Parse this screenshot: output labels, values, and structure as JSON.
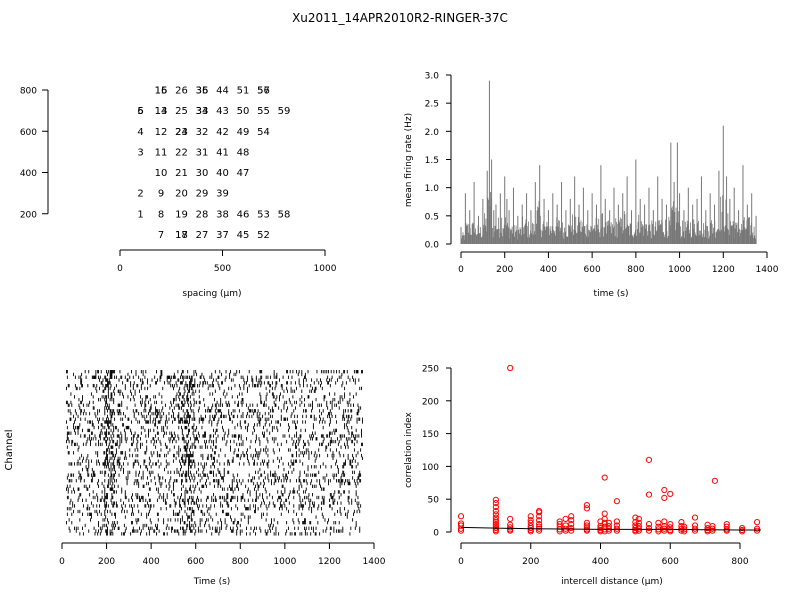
{
  "title": "Xu2011_14APR2010R2-RINGER-37C",
  "chart_data": [
    {
      "type": "scatter",
      "xlabel": "spacing (µm)",
      "ylabel": "",
      "xlim": [
        0,
        1000
      ],
      "ylim": [
        0,
        800
      ],
      "x_ticks": [
        "0",
        "500",
        "1000"
      ],
      "y_ticks": [
        "200",
        "400",
        "600",
        "800"
      ],
      "points": [
        {
          "x": 100,
          "y": 200,
          "label": "1"
        },
        {
          "x": 100,
          "y": 300,
          "label": "2"
        },
        {
          "x": 100,
          "y": 500,
          "label": "3"
        },
        {
          "x": 100,
          "y": 600,
          "label": "4"
        },
        {
          "x": 100,
          "y": 700,
          "label": "5"
        },
        {
          "x": 100,
          "y": 700,
          "label": "6"
        },
        {
          "x": 200,
          "y": 100,
          "label": "7"
        },
        {
          "x": 200,
          "y": 200,
          "label": "8"
        },
        {
          "x": 200,
          "y": 300,
          "label": "9"
        },
        {
          "x": 200,
          "y": 400,
          "label": "10"
        },
        {
          "x": 200,
          "y": 500,
          "label": "11"
        },
        {
          "x": 200,
          "y": 600,
          "label": "12"
        },
        {
          "x": 200,
          "y": 700,
          "label": "13"
        },
        {
          "x": 200,
          "y": 700,
          "label": "14"
        },
        {
          "x": 200,
          "y": 800,
          "label": "15"
        },
        {
          "x": 200,
          "y": 800,
          "label": "16"
        },
        {
          "x": 300,
          "y": 100,
          "label": "17"
        },
        {
          "x": 300,
          "y": 100,
          "label": "18"
        },
        {
          "x": 300,
          "y": 200,
          "label": "19"
        },
        {
          "x": 300,
          "y": 300,
          "label": "20"
        },
        {
          "x": 300,
          "y": 400,
          "label": "21"
        },
        {
          "x": 300,
          "y": 500,
          "label": "22"
        },
        {
          "x": 300,
          "y": 600,
          "label": "23"
        },
        {
          "x": 300,
          "y": 600,
          "label": "24"
        },
        {
          "x": 300,
          "y": 700,
          "label": "25"
        },
        {
          "x": 300,
          "y": 800,
          "label": "26"
        },
        {
          "x": 400,
          "y": 100,
          "label": "27"
        },
        {
          "x": 400,
          "y": 200,
          "label": "28"
        },
        {
          "x": 400,
          "y": 300,
          "label": "29"
        },
        {
          "x": 400,
          "y": 400,
          "label": "30"
        },
        {
          "x": 400,
          "y": 500,
          "label": "31"
        },
        {
          "x": 400,
          "y": 600,
          "label": "32"
        },
        {
          "x": 400,
          "y": 700,
          "label": "33"
        },
        {
          "x": 400,
          "y": 700,
          "label": "34"
        },
        {
          "x": 400,
          "y": 800,
          "label": "35"
        },
        {
          "x": 400,
          "y": 800,
          "label": "36"
        },
        {
          "x": 500,
          "y": 100,
          "label": "37"
        },
        {
          "x": 500,
          "y": 200,
          "label": "38"
        },
        {
          "x": 500,
          "y": 300,
          "label": "39"
        },
        {
          "x": 500,
          "y": 400,
          "label": "40"
        },
        {
          "x": 500,
          "y": 500,
          "label": "41"
        },
        {
          "x": 500,
          "y": 600,
          "label": "42"
        },
        {
          "x": 500,
          "y": 700,
          "label": "43"
        },
        {
          "x": 500,
          "y": 800,
          "label": "44"
        },
        {
          "x": 600,
          "y": 100,
          "label": "45"
        },
        {
          "x": 600,
          "y": 200,
          "label": "46"
        },
        {
          "x": 600,
          "y": 400,
          "label": "47"
        },
        {
          "x": 600,
          "y": 500,
          "label": "48"
        },
        {
          "x": 600,
          "y": 600,
          "label": "49"
        },
        {
          "x": 600,
          "y": 700,
          "label": "50"
        },
        {
          "x": 600,
          "y": 800,
          "label": "51"
        },
        {
          "x": 700,
          "y": 100,
          "label": "52"
        },
        {
          "x": 700,
          "y": 200,
          "label": "53"
        },
        {
          "x": 700,
          "y": 600,
          "label": "54"
        },
        {
          "x": 700,
          "y": 700,
          "label": "55"
        },
        {
          "x": 700,
          "y": 800,
          "label": "56"
        },
        {
          "x": 700,
          "y": 800,
          "label": "57"
        },
        {
          "x": 800,
          "y": 200,
          "label": "58"
        },
        {
          "x": 800,
          "y": 700,
          "label": "59"
        }
      ]
    },
    {
      "type": "bar",
      "xlabel": "time (s)",
      "ylabel": "mean firing rate (Hz)",
      "xlim": [
        0,
        1400
      ],
      "ylim": [
        0,
        3.0
      ],
      "x_ticks": [
        "0",
        "200",
        "400",
        "600",
        "800",
        "1000",
        "1200",
        "1400"
      ],
      "y_ticks": [
        "0.0",
        "0.5",
        "1.0",
        "1.5",
        "2.0",
        "2.5",
        "3.0"
      ],
      "color": "#777777",
      "x": [
        0,
        20,
        40,
        60,
        80,
        100,
        120,
        130,
        140,
        150,
        160,
        180,
        200,
        210,
        220,
        240,
        260,
        280,
        300,
        320,
        340,
        360,
        380,
        400,
        420,
        440,
        460,
        480,
        500,
        520,
        540,
        560,
        580,
        600,
        620,
        640,
        660,
        680,
        700,
        720,
        740,
        760,
        780,
        800,
        820,
        840,
        860,
        880,
        900,
        920,
        940,
        960,
        975,
        990,
        1000,
        1020,
        1040,
        1060,
        1080,
        1100,
        1120,
        1140,
        1160,
        1180,
        1200,
        1215,
        1230,
        1250,
        1270,
        1290,
        1310,
        1330,
        1350
      ],
      "values": [
        0.3,
        0.9,
        0.6,
        1.1,
        0.5,
        0.8,
        1.3,
        2.9,
        1.5,
        0.6,
        0.7,
        0.9,
        1.2,
        0.8,
        0.6,
        1.0,
        0.5,
        0.7,
        0.9,
        0.6,
        1.1,
        1.4,
        0.8,
        0.6,
        0.9,
        0.7,
        1.1,
        0.6,
        0.8,
        1.2,
        0.7,
        1.0,
        0.6,
        0.9,
        0.7,
        1.4,
        0.8,
        0.6,
        1.0,
        0.7,
        0.9,
        1.2,
        0.6,
        1.5,
        0.8,
        0.7,
        1.0,
        0.6,
        1.2,
        0.8,
        0.7,
        1.8,
        1.1,
        1.8,
        0.9,
        0.6,
        1.0,
        0.7,
        0.8,
        1.2,
        0.6,
        0.9,
        0.7,
        1.3,
        2.1,
        1.2,
        0.8,
        1.0,
        0.6,
        1.4,
        0.7,
        0.9,
        0.5
      ]
    },
    {
      "type": "raster",
      "xlabel": "Time (s)",
      "ylabel": "Channel",
      "xlim": [
        0,
        1400
      ],
      "x_ticks": [
        "0",
        "200",
        "400",
        "600",
        "800",
        "1000",
        "1200",
        "1400"
      ],
      "channels": 59,
      "duration": 1350
    },
    {
      "type": "scatter",
      "xlabel": "intercell distance (µm)",
      "ylabel": "correlation index",
      "xlim": [
        0,
        860
      ],
      "ylim": [
        0,
        250
      ],
      "x_ticks": [
        "0",
        "200",
        "400",
        "600",
        "800"
      ],
      "y_ticks": [
        "0",
        "50",
        "100",
        "150",
        "200",
        "250"
      ],
      "point_color": "#ff0000",
      "line_color": "#000000",
      "points": [
        {
          "x": 0,
          "y": 2
        },
        {
          "x": 0,
          "y": 5
        },
        {
          "x": 0,
          "y": 10
        },
        {
          "x": 0,
          "y": 13
        },
        {
          "x": 0,
          "y": 24
        },
        {
          "x": 100,
          "y": 1
        },
        {
          "x": 100,
          "y": 3
        },
        {
          "x": 100,
          "y": 6
        },
        {
          "x": 100,
          "y": 9
        },
        {
          "x": 100,
          "y": 12
        },
        {
          "x": 100,
          "y": 15
        },
        {
          "x": 100,
          "y": 18
        },
        {
          "x": 100,
          "y": 22
        },
        {
          "x": 100,
          "y": 27
        },
        {
          "x": 100,
          "y": 32
        },
        {
          "x": 100,
          "y": 38
        },
        {
          "x": 100,
          "y": 44
        },
        {
          "x": 100,
          "y": 49
        },
        {
          "x": 141,
          "y": 2
        },
        {
          "x": 141,
          "y": 4
        },
        {
          "x": 141,
          "y": 7
        },
        {
          "x": 141,
          "y": 11
        },
        {
          "x": 141,
          "y": 20
        },
        {
          "x": 141,
          "y": 250
        },
        {
          "x": 200,
          "y": 1
        },
        {
          "x": 200,
          "y": 3
        },
        {
          "x": 200,
          "y": 6
        },
        {
          "x": 200,
          "y": 9
        },
        {
          "x": 200,
          "y": 14
        },
        {
          "x": 200,
          "y": 18
        },
        {
          "x": 200,
          "y": 24
        },
        {
          "x": 224,
          "y": 2
        },
        {
          "x": 224,
          "y": 5
        },
        {
          "x": 224,
          "y": 8
        },
        {
          "x": 224,
          "y": 12
        },
        {
          "x": 224,
          "y": 18
        },
        {
          "x": 224,
          "y": 24
        },
        {
          "x": 224,
          "y": 30
        },
        {
          "x": 224,
          "y": 32
        },
        {
          "x": 283,
          "y": 1
        },
        {
          "x": 283,
          "y": 4
        },
        {
          "x": 283,
          "y": 8
        },
        {
          "x": 283,
          "y": 12
        },
        {
          "x": 283,
          "y": 16
        },
        {
          "x": 300,
          "y": 2
        },
        {
          "x": 300,
          "y": 5
        },
        {
          "x": 300,
          "y": 10
        },
        {
          "x": 300,
          "y": 20
        },
        {
          "x": 316,
          "y": 2
        },
        {
          "x": 316,
          "y": 6
        },
        {
          "x": 316,
          "y": 12
        },
        {
          "x": 316,
          "y": 18
        },
        {
          "x": 316,
          "y": 24
        },
        {
          "x": 361,
          "y": 2
        },
        {
          "x": 361,
          "y": 4
        },
        {
          "x": 361,
          "y": 7
        },
        {
          "x": 361,
          "y": 10
        },
        {
          "x": 361,
          "y": 14
        },
        {
          "x": 361,
          "y": 36
        },
        {
          "x": 361,
          "y": 41
        },
        {
          "x": 400,
          "y": 1
        },
        {
          "x": 400,
          "y": 3
        },
        {
          "x": 400,
          "y": 6
        },
        {
          "x": 400,
          "y": 9
        },
        {
          "x": 400,
          "y": 16
        },
        {
          "x": 412,
          "y": 1
        },
        {
          "x": 412,
          "y": 4
        },
        {
          "x": 412,
          "y": 8
        },
        {
          "x": 412,
          "y": 14
        },
        {
          "x": 412,
          "y": 20
        },
        {
          "x": 412,
          "y": 28
        },
        {
          "x": 412,
          "y": 83
        },
        {
          "x": 424,
          "y": 2
        },
        {
          "x": 424,
          "y": 5
        },
        {
          "x": 424,
          "y": 9
        },
        {
          "x": 424,
          "y": 14
        },
        {
          "x": 447,
          "y": 2
        },
        {
          "x": 447,
          "y": 5
        },
        {
          "x": 447,
          "y": 10
        },
        {
          "x": 447,
          "y": 16
        },
        {
          "x": 447,
          "y": 47
        },
        {
          "x": 500,
          "y": 1
        },
        {
          "x": 500,
          "y": 3
        },
        {
          "x": 500,
          "y": 6
        },
        {
          "x": 500,
          "y": 10
        },
        {
          "x": 500,
          "y": 15
        },
        {
          "x": 500,
          "y": 22
        },
        {
          "x": 510,
          "y": 2
        },
        {
          "x": 510,
          "y": 5
        },
        {
          "x": 510,
          "y": 9
        },
        {
          "x": 510,
          "y": 14
        },
        {
          "x": 510,
          "y": 20
        },
        {
          "x": 539,
          "y": 2
        },
        {
          "x": 539,
          "y": 6
        },
        {
          "x": 539,
          "y": 12
        },
        {
          "x": 539,
          "y": 57
        },
        {
          "x": 539,
          "y": 110
        },
        {
          "x": 566,
          "y": 1
        },
        {
          "x": 566,
          "y": 4
        },
        {
          "x": 566,
          "y": 8
        },
        {
          "x": 566,
          "y": 14
        },
        {
          "x": 583,
          "y": 2
        },
        {
          "x": 583,
          "y": 5
        },
        {
          "x": 583,
          "y": 9
        },
        {
          "x": 583,
          "y": 16
        },
        {
          "x": 583,
          "y": 52
        },
        {
          "x": 583,
          "y": 64
        },
        {
          "x": 600,
          "y": 1
        },
        {
          "x": 600,
          "y": 3
        },
        {
          "x": 600,
          "y": 7
        },
        {
          "x": 600,
          "y": 12
        },
        {
          "x": 600,
          "y": 58
        },
        {
          "x": 632,
          "y": 2
        },
        {
          "x": 632,
          "y": 5
        },
        {
          "x": 632,
          "y": 9
        },
        {
          "x": 632,
          "y": 15
        },
        {
          "x": 640,
          "y": 1
        },
        {
          "x": 640,
          "y": 4
        },
        {
          "x": 640,
          "y": 8
        },
        {
          "x": 671,
          "y": 2
        },
        {
          "x": 671,
          "y": 5
        },
        {
          "x": 671,
          "y": 10
        },
        {
          "x": 671,
          "y": 22
        },
        {
          "x": 707,
          "y": 1
        },
        {
          "x": 707,
          "y": 3
        },
        {
          "x": 707,
          "y": 6
        },
        {
          "x": 707,
          "y": 11
        },
        {
          "x": 721,
          "y": 2
        },
        {
          "x": 721,
          "y": 5
        },
        {
          "x": 721,
          "y": 9
        },
        {
          "x": 728,
          "y": 78
        },
        {
          "x": 762,
          "y": 2
        },
        {
          "x": 762,
          "y": 4
        },
        {
          "x": 762,
          "y": 8
        },
        {
          "x": 762,
          "y": 12
        },
        {
          "x": 806,
          "y": 1
        },
        {
          "x": 806,
          "y": 3
        },
        {
          "x": 806,
          "y": 6
        },
        {
          "x": 849,
          "y": 2
        },
        {
          "x": 849,
          "y": 5
        },
        {
          "x": 849,
          "y": 15
        }
      ],
      "trend": [
        {
          "x": 0,
          "y": 7
        },
        {
          "x": 100,
          "y": 6
        },
        {
          "x": 200,
          "y": 5
        },
        {
          "x": 300,
          "y": 4.5
        },
        {
          "x": 400,
          "y": 4
        },
        {
          "x": 500,
          "y": 4
        },
        {
          "x": 600,
          "y": 4
        },
        {
          "x": 700,
          "y": 3.5
        },
        {
          "x": 800,
          "y": 3
        },
        {
          "x": 860,
          "y": 3
        }
      ]
    }
  ]
}
